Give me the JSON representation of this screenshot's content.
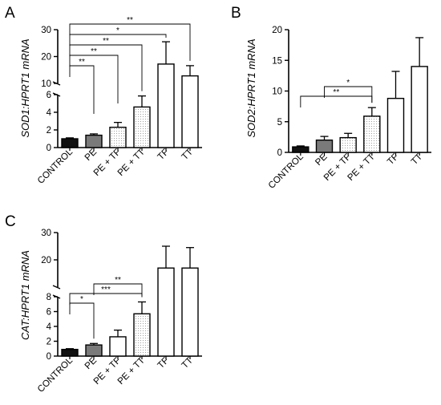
{
  "panel_labels": {
    "A": "A",
    "B": "B",
    "C": "C"
  },
  "colors": {
    "control": "#111111",
    "pe": "#7a7a7a",
    "open": "#ffffff",
    "dotted": "#cfcfcf",
    "axis": "#000000"
  },
  "chart_data": [
    {
      "id": "A",
      "type": "bar",
      "ylabel": "SOD1:HPRT1 mRNA",
      "categories": [
        "CONTROL",
        "PE",
        "PE + TF",
        "PE + TT",
        "TF",
        "TT"
      ],
      "values": [
        1.0,
        1.4,
        2.3,
        4.6,
        17.2,
        12.8
      ],
      "errors": [
        0.1,
        0.15,
        0.55,
        1.25,
        8.3,
        3.8
      ],
      "fills": [
        "control",
        "pe",
        "dotted",
        "dotted",
        "open",
        "open"
      ],
      "broken_axis": {
        "lower_range": [
          0,
          6
        ],
        "upper_range": [
          10,
          30
        ],
        "lower_ticks": [
          0,
          2,
          4,
          6
        ],
        "upper_ticks": [
          10,
          20,
          30
        ]
      },
      "significance": [
        {
          "from": 0,
          "to": 5,
          "label": "**"
        },
        {
          "from": 0,
          "to": 4,
          "label": "*"
        },
        {
          "from": 0,
          "to": 3,
          "label": "**"
        },
        {
          "from": 0,
          "to": 2,
          "label": "**"
        },
        {
          "from": 0,
          "to": 1,
          "label": "**"
        }
      ]
    },
    {
      "id": "B",
      "type": "bar",
      "ylabel": "SOD2:HPRT1 mRNA",
      "categories": [
        "CONTROL",
        "PE",
        "PE + TF",
        "PE + TT",
        "TF",
        "TT"
      ],
      "values": [
        0.9,
        2.0,
        2.4,
        5.9,
        8.8,
        14.0
      ],
      "errors": [
        0.15,
        0.6,
        0.7,
        1.4,
        4.4,
        4.7
      ],
      "fills": [
        "control",
        "pe",
        "dotted",
        "dotted",
        "open",
        "open"
      ],
      "ylim": [
        0,
        20
      ],
      "yticks": [
        0,
        5,
        10,
        15,
        20
      ],
      "significance": [
        {
          "from": 1,
          "to": 3,
          "label": "*"
        },
        {
          "from": 0,
          "to": 3,
          "label": "**"
        }
      ]
    },
    {
      "id": "C",
      "type": "bar",
      "ylabel": "CAT:HPRT1 mRNA",
      "categories": [
        "CONTROL",
        "PE",
        "PE + TF",
        "PE + TT",
        "TF",
        "TT"
      ],
      "values": [
        0.9,
        1.5,
        2.6,
        5.7,
        17.0,
        17.0
      ],
      "errors": [
        0.1,
        0.2,
        0.9,
        1.6,
        8.0,
        7.5
      ],
      "fills": [
        "control",
        "pe",
        "open",
        "dotted",
        "open",
        "open"
      ],
      "broken_axis": {
        "lower_range": [
          0,
          8
        ],
        "upper_range": [
          10,
          30
        ],
        "lower_ticks": [
          0,
          2,
          4,
          6,
          8
        ],
        "upper_ticks": [
          20,
          30
        ]
      },
      "significance": [
        {
          "from": 1,
          "to": 3,
          "label": "**"
        },
        {
          "from": 0,
          "to": 3,
          "label": "***"
        },
        {
          "from": 0,
          "to": 1,
          "label": "*"
        }
      ]
    }
  ]
}
